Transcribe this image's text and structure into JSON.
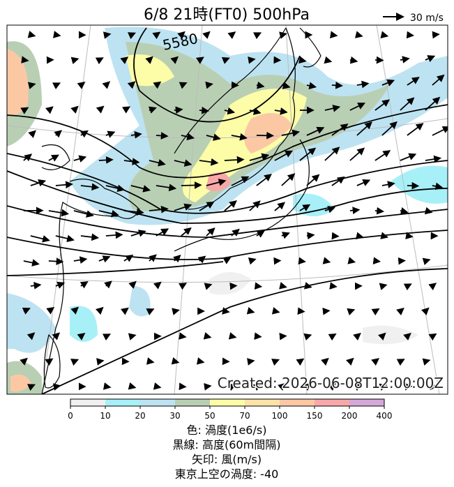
{
  "header": {
    "title": "6/8  21時(FT0)    500hPa",
    "wind_scale": "30 m/s"
  },
  "map": {
    "contour_label": "5580",
    "created": "Created: 2026-06-08T12:00:00Z"
  },
  "colorbar": {
    "ticks": [
      0,
      10,
      20,
      30,
      50,
      70,
      100,
      150,
      200,
      400
    ],
    "colors": [
      "#f0f0f0",
      "#a8f0f8",
      "#bde3f2",
      "#b9cfb4",
      "#fdfda8",
      "#fde3a8",
      "#fcc8a4",
      "#f8a8a8",
      "#d4a8d8"
    ]
  },
  "caption": [
    "色: 渦度(1e6/s)",
    "黒線: 高度(60m間隔)",
    "矢印: 風(m/s)",
    "東京上空の渦度: -40"
  ]
}
